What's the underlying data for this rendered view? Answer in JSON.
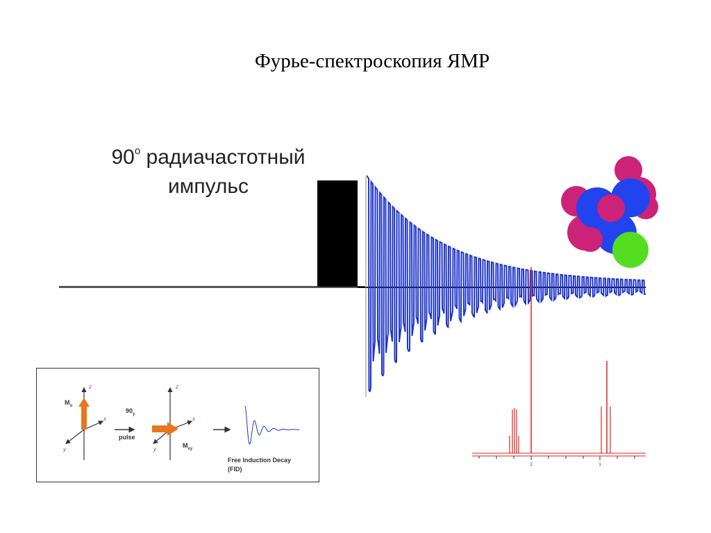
{
  "title": "Фурье-спектроскопия ЯМР",
  "pulse_label": {
    "degrees": "90",
    "degree_symbol": "о",
    "line1_rest": " радиачастотный",
    "line2": "импульс"
  },
  "inset": {
    "m0_label": "M",
    "m0_sub": "o",
    "z_label": "z",
    "x_label": "x",
    "y_label": "y",
    "pulse_angle": "90",
    "pulse_angle_sub": "y",
    "pulse_word": "pulse",
    "mxy_label": "M",
    "mxy_sub": "xy",
    "fid_line1": "Free Induction Decay",
    "fid_line2": "(FID)"
  },
  "spectrum": {
    "tick_labels": [
      "2",
      "1"
    ]
  },
  "colors": {
    "fid": "#1f35c8",
    "spectrum": "#e02020",
    "pulse": "#000000",
    "arrow": "#e8761e",
    "molecule_blue": "#2244ee",
    "molecule_magenta": "#cc2277",
    "molecule_green": "#55dd22"
  }
}
